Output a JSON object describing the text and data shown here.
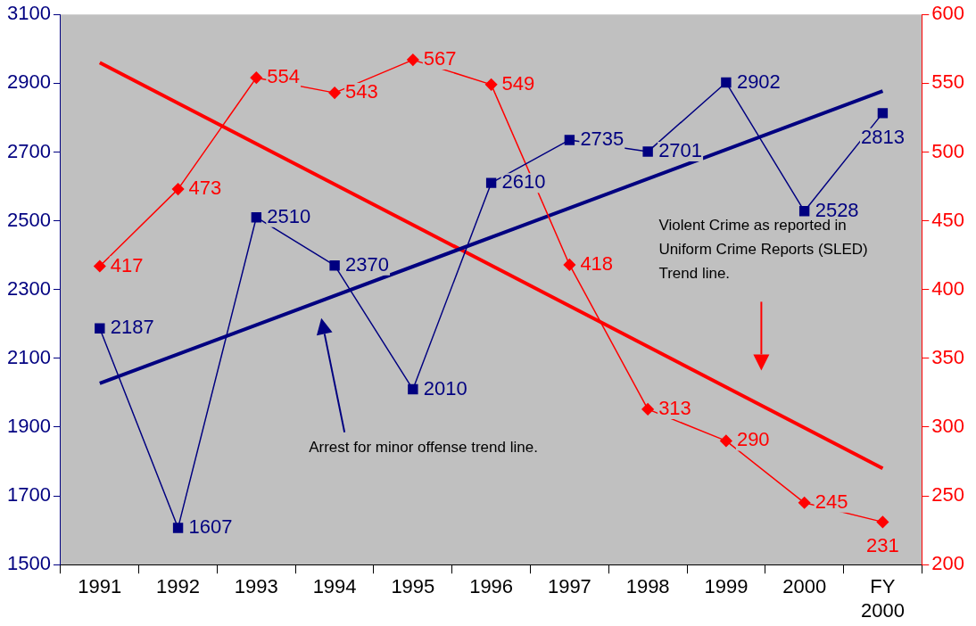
{
  "chart_data": {
    "type": "line",
    "categories": [
      "1991",
      "1992",
      "1993",
      "1994",
      "1995",
      "1996",
      "1997",
      "1998",
      "1999",
      "2000",
      "FY 2000"
    ],
    "series": [
      {
        "color": "#000080",
        "marker": "square",
        "values": [
          2187,
          1607,
          2510,
          2370,
          2010,
          2610,
          2735,
          2701,
          2902,
          2528,
          2813
        ],
        "value_labels": [
          "2187",
          "1607",
          "2510",
          "2370",
          "2010",
          "2610",
          "2735",
          "2701",
          "2902",
          "2528",
          "2813"
        ]
      },
      {
        "color": "#ff0000",
        "marker": "diamond",
        "axis": "y2",
        "values": [
          417,
          473,
          554,
          543,
          567,
          549,
          418,
          313,
          290,
          245,
          231
        ],
        "value_labels": [
          "417",
          "473",
          "554",
          "543",
          "567",
          "549",
          "418",
          "313",
          "290",
          "245",
          "231"
        ]
      },
      {
        "color": "#000080",
        "marker": "none",
        "values": [
          2027,
          null,
          null,
          null,
          null,
          null,
          null,
          null,
          null,
          null,
          2877
        ]
      },
      {
        "color": "#ff0000",
        "marker": "none",
        "axis": "y2",
        "values": [
          565,
          null,
          null,
          null,
          null,
          null,
          null,
          null,
          null,
          null,
          270
        ]
      }
    ],
    "ylim": [
      1500,
      3100
    ],
    "yticks": [
      1500,
      1700,
      1900,
      2100,
      2300,
      2500,
      2700,
      2900,
      3100
    ],
    "y2lim": [
      200,
      600
    ],
    "y2ticks": [
      200,
      250,
      300,
      350,
      400,
      450,
      500,
      550,
      600
    ],
    "annotations": [
      "Arrest for minor offense trend line.",
      "Violent Crime as reported in Uniform Crime Reports (SLED) Trend line."
    ],
    "grid": false,
    "legend": false,
    "line_style": "solid"
  }
}
